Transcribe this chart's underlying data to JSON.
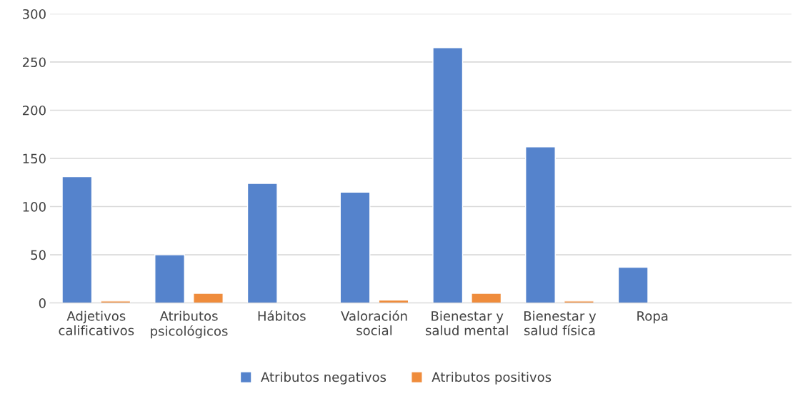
{
  "chart_data": {
    "type": "bar",
    "categories": [
      "Adjetivos\ncalificativos",
      "Atributos\npsicológicos",
      "Hábitos",
      "Valoración\nsocial",
      "Bienestar y\nsalud mental",
      "Bienestar y\nsalud física",
      "Ropa",
      null
    ],
    "series": [
      {
        "name": "Atributos negativos",
        "color": "#5583cc",
        "values": [
          131,
          50,
          124,
          115,
          265,
          162,
          37,
          null
        ]
      },
      {
        "name": "Atributos positivos",
        "color": "#ef8c3c",
        "values": [
          2,
          10,
          null,
          3,
          10,
          2,
          null,
          null
        ]
      }
    ],
    "ylim": [
      0,
      300
    ],
    "yticks": [
      0,
      50,
      100,
      150,
      200,
      250,
      300
    ],
    "grid": "y",
    "legend": "bottom"
  }
}
